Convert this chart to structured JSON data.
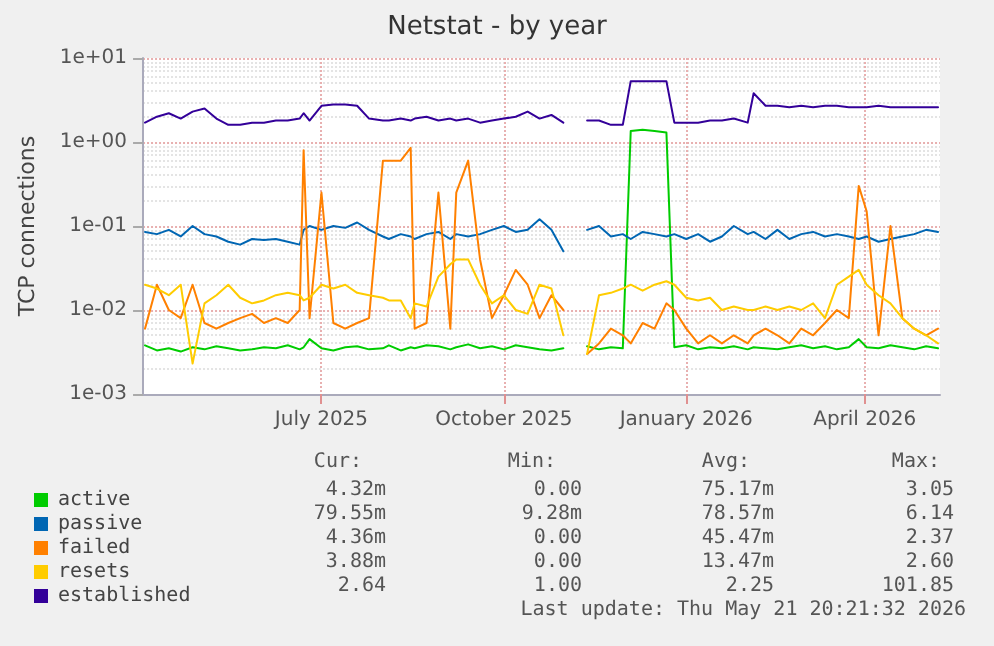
{
  "chart_data": {
    "type": "line",
    "title": "Netstat - by year",
    "ylabel": "TCP connections",
    "x": [
      "2025-04-03",
      "2025-04-09",
      "2025-04-15",
      "2025-04-21",
      "2025-04-27",
      "2025-05-03",
      "2025-05-09",
      "2025-05-15",
      "2025-05-21",
      "2025-05-27",
      "2025-06-02",
      "2025-06-08",
      "2025-06-14",
      "2025-06-20",
      "2025-06-22",
      "2025-06-25",
      "2025-07-01",
      "2025-07-07",
      "2025-07-13",
      "2025-07-19",
      "2025-07-25",
      "2025-08-01",
      "2025-08-04",
      "2025-08-10",
      "2025-08-15",
      "2025-08-17",
      "2025-08-23",
      "2025-08-29",
      "2025-09-04",
      "2025-09-07",
      "2025-09-13",
      "2025-09-19",
      "2025-09-25",
      "2025-10-01",
      "2025-10-07",
      "2025-10-13",
      "2025-10-19",
      "2025-10-25",
      "2025-10-31",
      "2025-11-06",
      "2025-11-12",
      "2025-11-18",
      "2025-11-24",
      "2025-11-30",
      "2025-12-04",
      "2025-12-10",
      "2025-12-16",
      "2025-12-22",
      "2025-12-26",
      "2026-01-01",
      "2026-01-07",
      "2026-01-13",
      "2026-01-19",
      "2026-01-25",
      "2026-02-01",
      "2026-02-04",
      "2026-02-10",
      "2026-02-16",
      "2026-02-22",
      "2026-02-28",
      "2026-03-06",
      "2026-03-12",
      "2026-03-18",
      "2026-03-24",
      "2026-03-29",
      "2026-04-02",
      "2026-04-08",
      "2026-04-14",
      "2026-04-20",
      "2026-04-26",
      "2026-05-02",
      "2026-05-08"
    ],
    "series": [
      {
        "name": "active",
        "color": "#00cc00",
        "values": [
          0.0038,
          0.0033,
          0.0035,
          0.0032,
          0.0036,
          0.0034,
          0.0037,
          0.0035,
          0.0033,
          0.0034,
          0.0036,
          0.0035,
          0.0038,
          0.0034,
          0.0036,
          0.0045,
          0.0035,
          0.0033,
          0.0036,
          0.0037,
          0.0034,
          0.0035,
          0.0038,
          0.0033,
          0.0036,
          0.0035,
          0.0038,
          0.0037,
          0.0034,
          0.0036,
          0.0039,
          0.0035,
          0.0037,
          0.0034,
          0.0038,
          0.0036,
          0.0034,
          0.0033,
          0.0035,
          null,
          0.0037,
          0.0034,
          0.0036,
          0.0035,
          1.35,
          1.4,
          1.35,
          1.3,
          0.0036,
          0.0038,
          0.0034,
          0.0036,
          0.0035,
          0.0037,
          0.0034,
          0.0036,
          0.0035,
          0.0034,
          0.0036,
          0.0038,
          0.0035,
          0.0037,
          0.0034,
          0.0036,
          0.0045,
          0.0036,
          0.0035,
          0.0038,
          0.0036,
          0.0034,
          0.0037,
          0.0035
        ]
      },
      {
        "name": "passive",
        "color": "#0066b3",
        "values": [
          0.085,
          0.08,
          0.09,
          0.075,
          0.1,
          0.08,
          0.075,
          0.065,
          0.06,
          0.07,
          0.068,
          0.07,
          0.065,
          0.06,
          0.09,
          0.1,
          0.09,
          0.1,
          0.095,
          0.11,
          0.09,
          0.075,
          0.07,
          0.08,
          0.075,
          0.07,
          0.08,
          0.085,
          0.07,
          0.08,
          0.075,
          0.08,
          0.09,
          0.1,
          0.085,
          0.09,
          0.12,
          0.09,
          0.05,
          null,
          0.09,
          0.1,
          0.075,
          0.08,
          0.07,
          0.085,
          0.08,
          0.075,
          0.08,
          0.07,
          0.08,
          0.065,
          0.075,
          0.1,
          0.08,
          0.085,
          0.07,
          0.09,
          0.07,
          0.08,
          0.085,
          0.075,
          0.08,
          0.075,
          0.07,
          0.075,
          0.065,
          0.07,
          0.075,
          0.08,
          0.09,
          0.085
        ]
      },
      {
        "name": "failed",
        "color": "#ff8000",
        "values": [
          0.006,
          0.02,
          0.01,
          0.008,
          0.02,
          0.007,
          0.006,
          0.007,
          0.008,
          0.009,
          0.007,
          0.008,
          0.007,
          0.01,
          0.8,
          0.008,
          0.25,
          0.007,
          0.006,
          0.007,
          0.008,
          0.6,
          0.6,
          0.6,
          0.85,
          0.006,
          0.007,
          0.25,
          0.006,
          0.25,
          0.6,
          0.04,
          0.008,
          0.015,
          0.03,
          0.02,
          0.008,
          0.015,
          0.01,
          null,
          0.003,
          0.004,
          0.006,
          0.005,
          0.004,
          0.007,
          0.006,
          0.012,
          0.01,
          0.006,
          0.004,
          0.005,
          0.004,
          0.005,
          0.004,
          0.005,
          0.006,
          0.005,
          0.004,
          0.006,
          0.005,
          0.007,
          0.01,
          0.008,
          0.3,
          0.15,
          0.005,
          0.1,
          0.008,
          0.006,
          0.005,
          0.006
        ]
      },
      {
        "name": "resets",
        "color": "#ffcc00",
        "values": [
          0.02,
          0.018,
          0.015,
          0.02,
          0.0023,
          0.012,
          0.015,
          0.02,
          0.014,
          0.012,
          0.013,
          0.015,
          0.016,
          0.015,
          0.013,
          0.014,
          0.02,
          0.018,
          0.02,
          0.016,
          0.015,
          0.014,
          0.013,
          0.013,
          0.008,
          0.012,
          0.011,
          0.025,
          0.035,
          0.04,
          0.04,
          0.02,
          0.012,
          0.015,
          0.01,
          0.009,
          0.02,
          0.018,
          0.005,
          null,
          0.003,
          0.015,
          0.016,
          0.018,
          0.02,
          0.017,
          0.02,
          0.022,
          0.02,
          0.014,
          0.013,
          0.014,
          0.01,
          0.011,
          0.01,
          0.01,
          0.011,
          0.01,
          0.011,
          0.01,
          0.012,
          0.008,
          0.02,
          0.025,
          0.03,
          0.02,
          0.015,
          0.012,
          0.008,
          0.006,
          0.005,
          0.004
        ]
      },
      {
        "name": "established",
        "color": "#330099",
        "values": [
          1.7,
          2.0,
          2.2,
          1.9,
          2.3,
          2.5,
          1.9,
          1.6,
          1.6,
          1.7,
          1.7,
          1.8,
          1.8,
          1.9,
          2.2,
          1.8,
          2.7,
          2.8,
          2.8,
          2.7,
          1.9,
          1.8,
          1.8,
          1.9,
          1.8,
          1.9,
          2.0,
          1.8,
          1.9,
          1.8,
          1.9,
          1.7,
          1.8,
          1.9,
          2.0,
          2.3,
          1.9,
          2.1,
          1.7,
          null,
          1.8,
          1.8,
          1.6,
          1.6,
          5.3,
          5.3,
          5.3,
          5.3,
          1.7,
          1.7,
          1.7,
          1.8,
          1.8,
          1.9,
          1.7,
          3.8,
          2.7,
          2.7,
          2.6,
          2.7,
          2.6,
          2.7,
          2.7,
          2.6,
          2.6,
          2.6,
          2.7,
          2.6,
          2.6,
          2.6,
          2.6,
          2.6
        ]
      }
    ],
    "xlim": [
      "2025-04-02",
      "2026-05-09"
    ],
    "xticks": [
      {
        "value": "2025-07-01",
        "label": "July 2025"
      },
      {
        "value": "2025-10-01",
        "label": "October 2025"
      },
      {
        "value": "2026-01-01",
        "label": "January 2026"
      },
      {
        "value": "2026-04-01",
        "label": "April 2026"
      }
    ],
    "ylim": [
      0.001,
      10
    ],
    "yticks": [
      {
        "value": 0.001,
        "label": "1e-03"
      },
      {
        "value": 0.01,
        "label": "1e-02"
      },
      {
        "value": 0.1,
        "label": "1e-01"
      },
      {
        "value": 1,
        "label": "1e+00"
      },
      {
        "value": 10,
        "label": "1e+01"
      }
    ],
    "log": "y",
    "grid": true,
    "legend": "bottom",
    "marker": "none",
    "line_style": "solid",
    "annotations": [
      "Cur:",
      "Min:",
      "Avg:",
      "Max:",
      "4.32m",
      "0.00",
      "75.17m",
      "3.05",
      "79.55m",
      "9.28m",
      "78.57m",
      "6.14",
      "4.36m",
      "0.00",
      "45.47m",
      "2.37",
      "3.88m",
      "0.00",
      "13.47m",
      "2.60",
      "2.64",
      "1.00",
      "2.25",
      "101.85",
      "Last update: Thu May 21 20:21:32 2026"
    ]
  }
}
